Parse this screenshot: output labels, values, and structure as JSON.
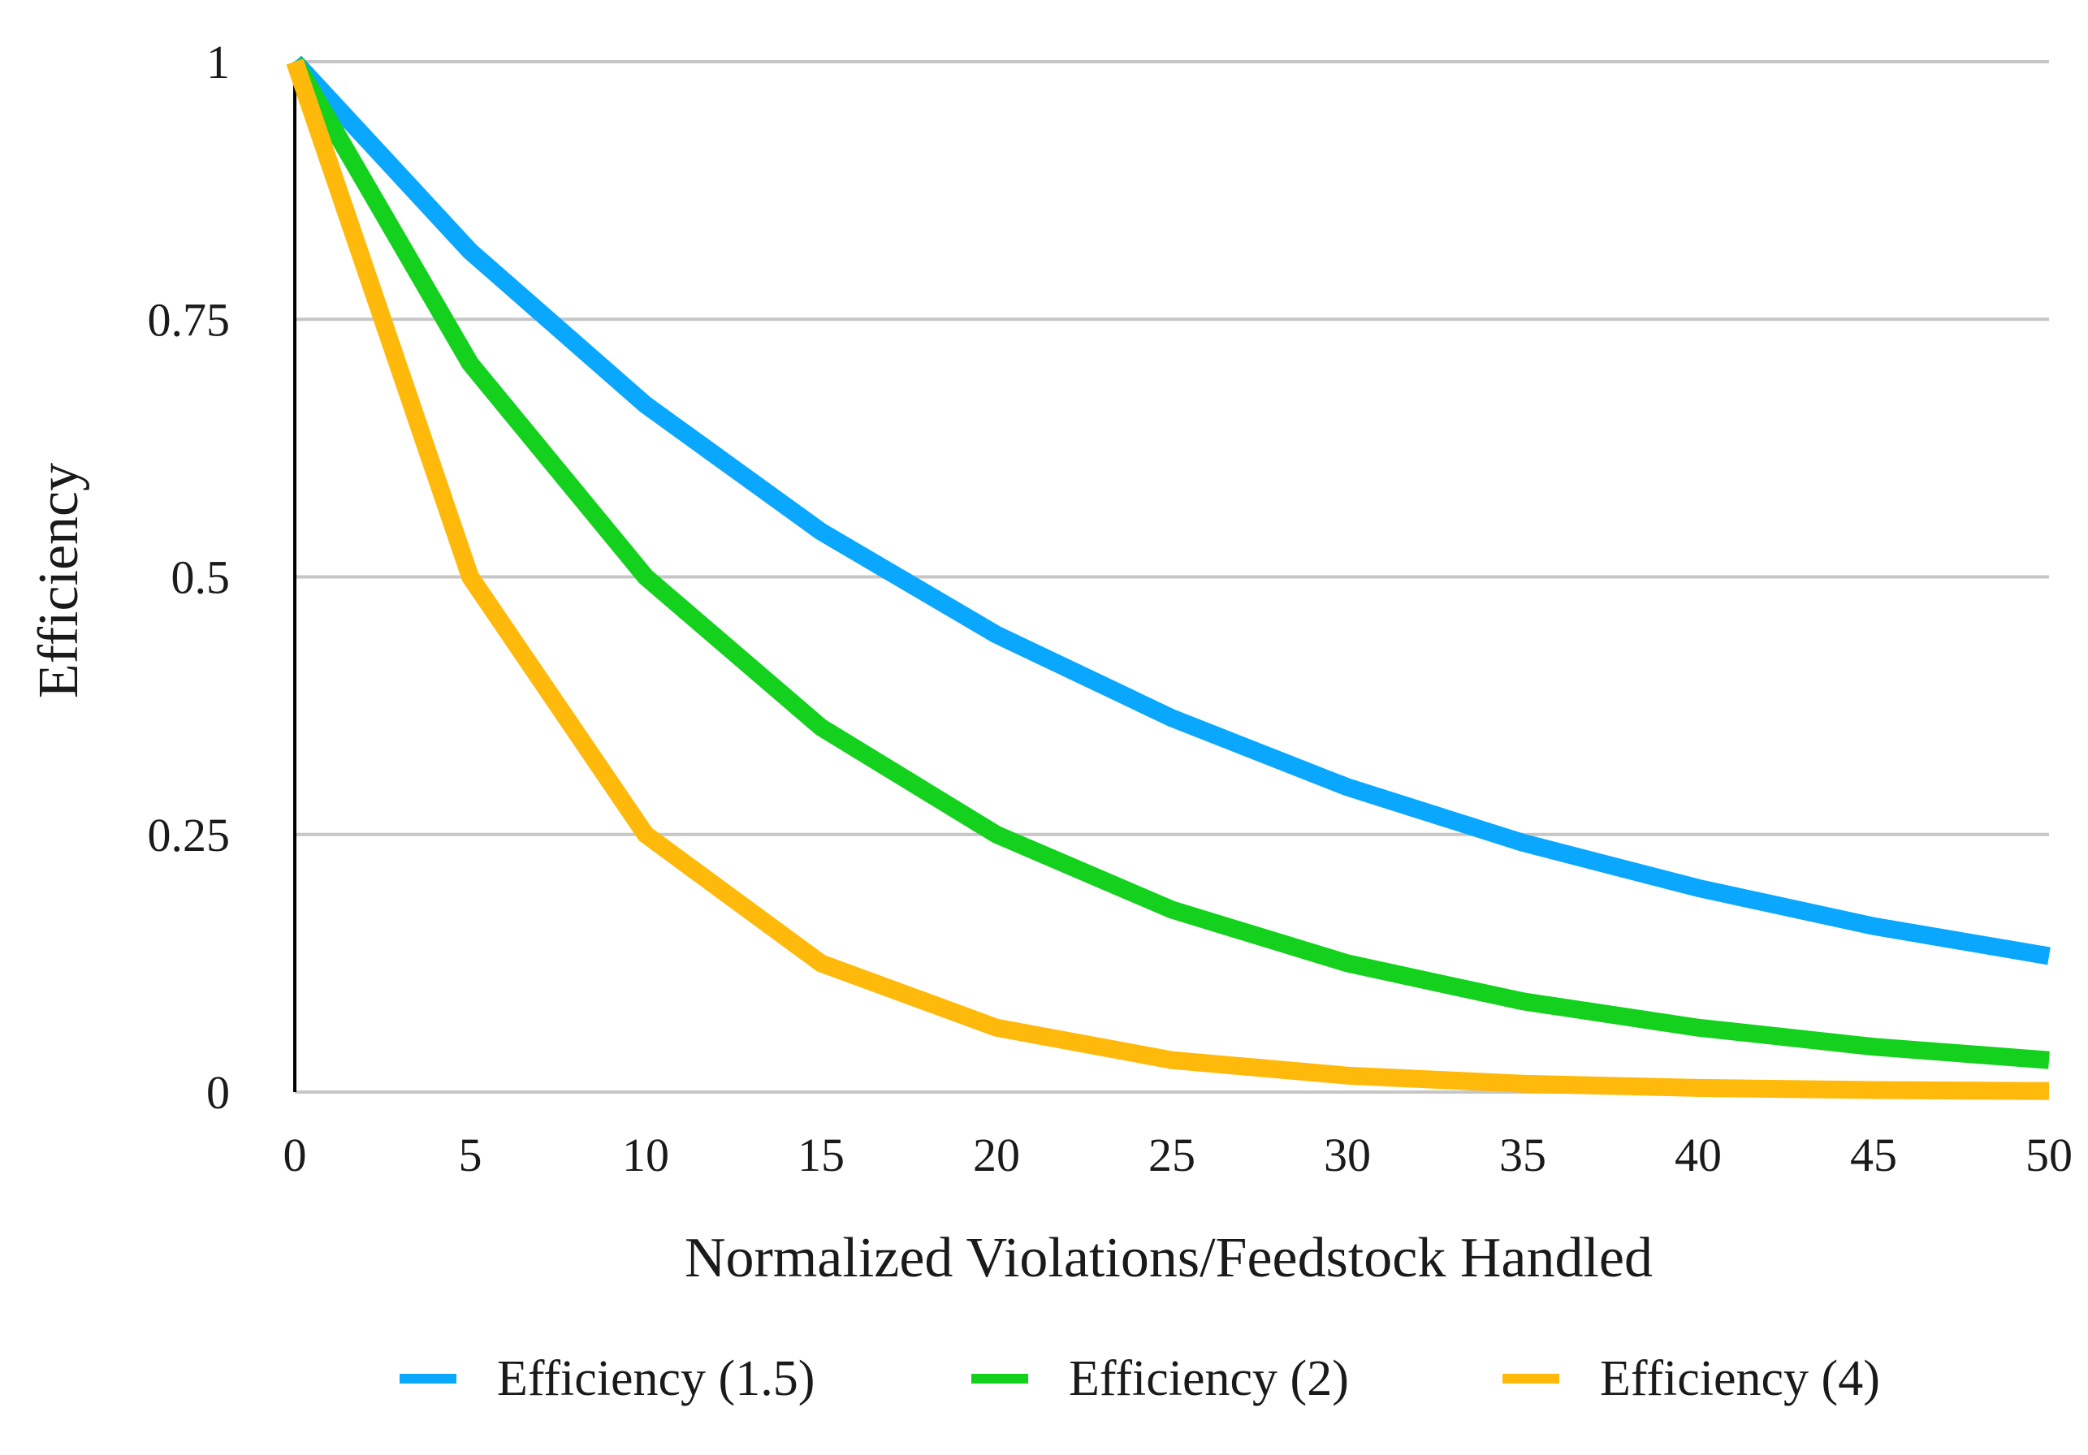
{
  "chart_data": {
    "type": "line",
    "title": "",
    "xlabel": "Normalized Violations/Feedstock Handled",
    "ylabel": "Efficiency",
    "x": [
      0,
      5,
      10,
      15,
      20,
      25,
      30,
      35,
      40,
      45,
      50
    ],
    "x_tick_labels": [
      "0",
      "5",
      "10",
      "15",
      "20",
      "25",
      "30",
      "35",
      "40",
      "45",
      "50"
    ],
    "y_ticks": [
      0,
      0.25,
      0.5,
      0.75,
      1
    ],
    "y_tick_labels": [
      "0",
      "0.25",
      "0.5",
      "0.75",
      "1"
    ],
    "xlim": [
      0,
      50
    ],
    "ylim": [
      0,
      1
    ],
    "grid": "horizontal",
    "legend_position": "bottom",
    "series": [
      {
        "name": "Efficiency (1.5)",
        "color": "#0AA7FF",
        "values": [
          1,
          0.816,
          0.667,
          0.544,
          0.444,
          0.363,
          0.296,
          0.242,
          0.198,
          0.161,
          0.132
        ]
      },
      {
        "name": "Efficiency (2)",
        "color": "#13D11D",
        "values": [
          1,
          0.707,
          0.5,
          0.354,
          0.25,
          0.177,
          0.125,
          0.088,
          0.0625,
          0.044,
          0.031
        ]
      },
      {
        "name": "Efficiency (4)",
        "color": "#FFB90A",
        "values": [
          1,
          0.5,
          0.25,
          0.125,
          0.0625,
          0.031,
          0.016,
          0.008,
          0.004,
          0.002,
          0.001
        ]
      }
    ]
  }
}
